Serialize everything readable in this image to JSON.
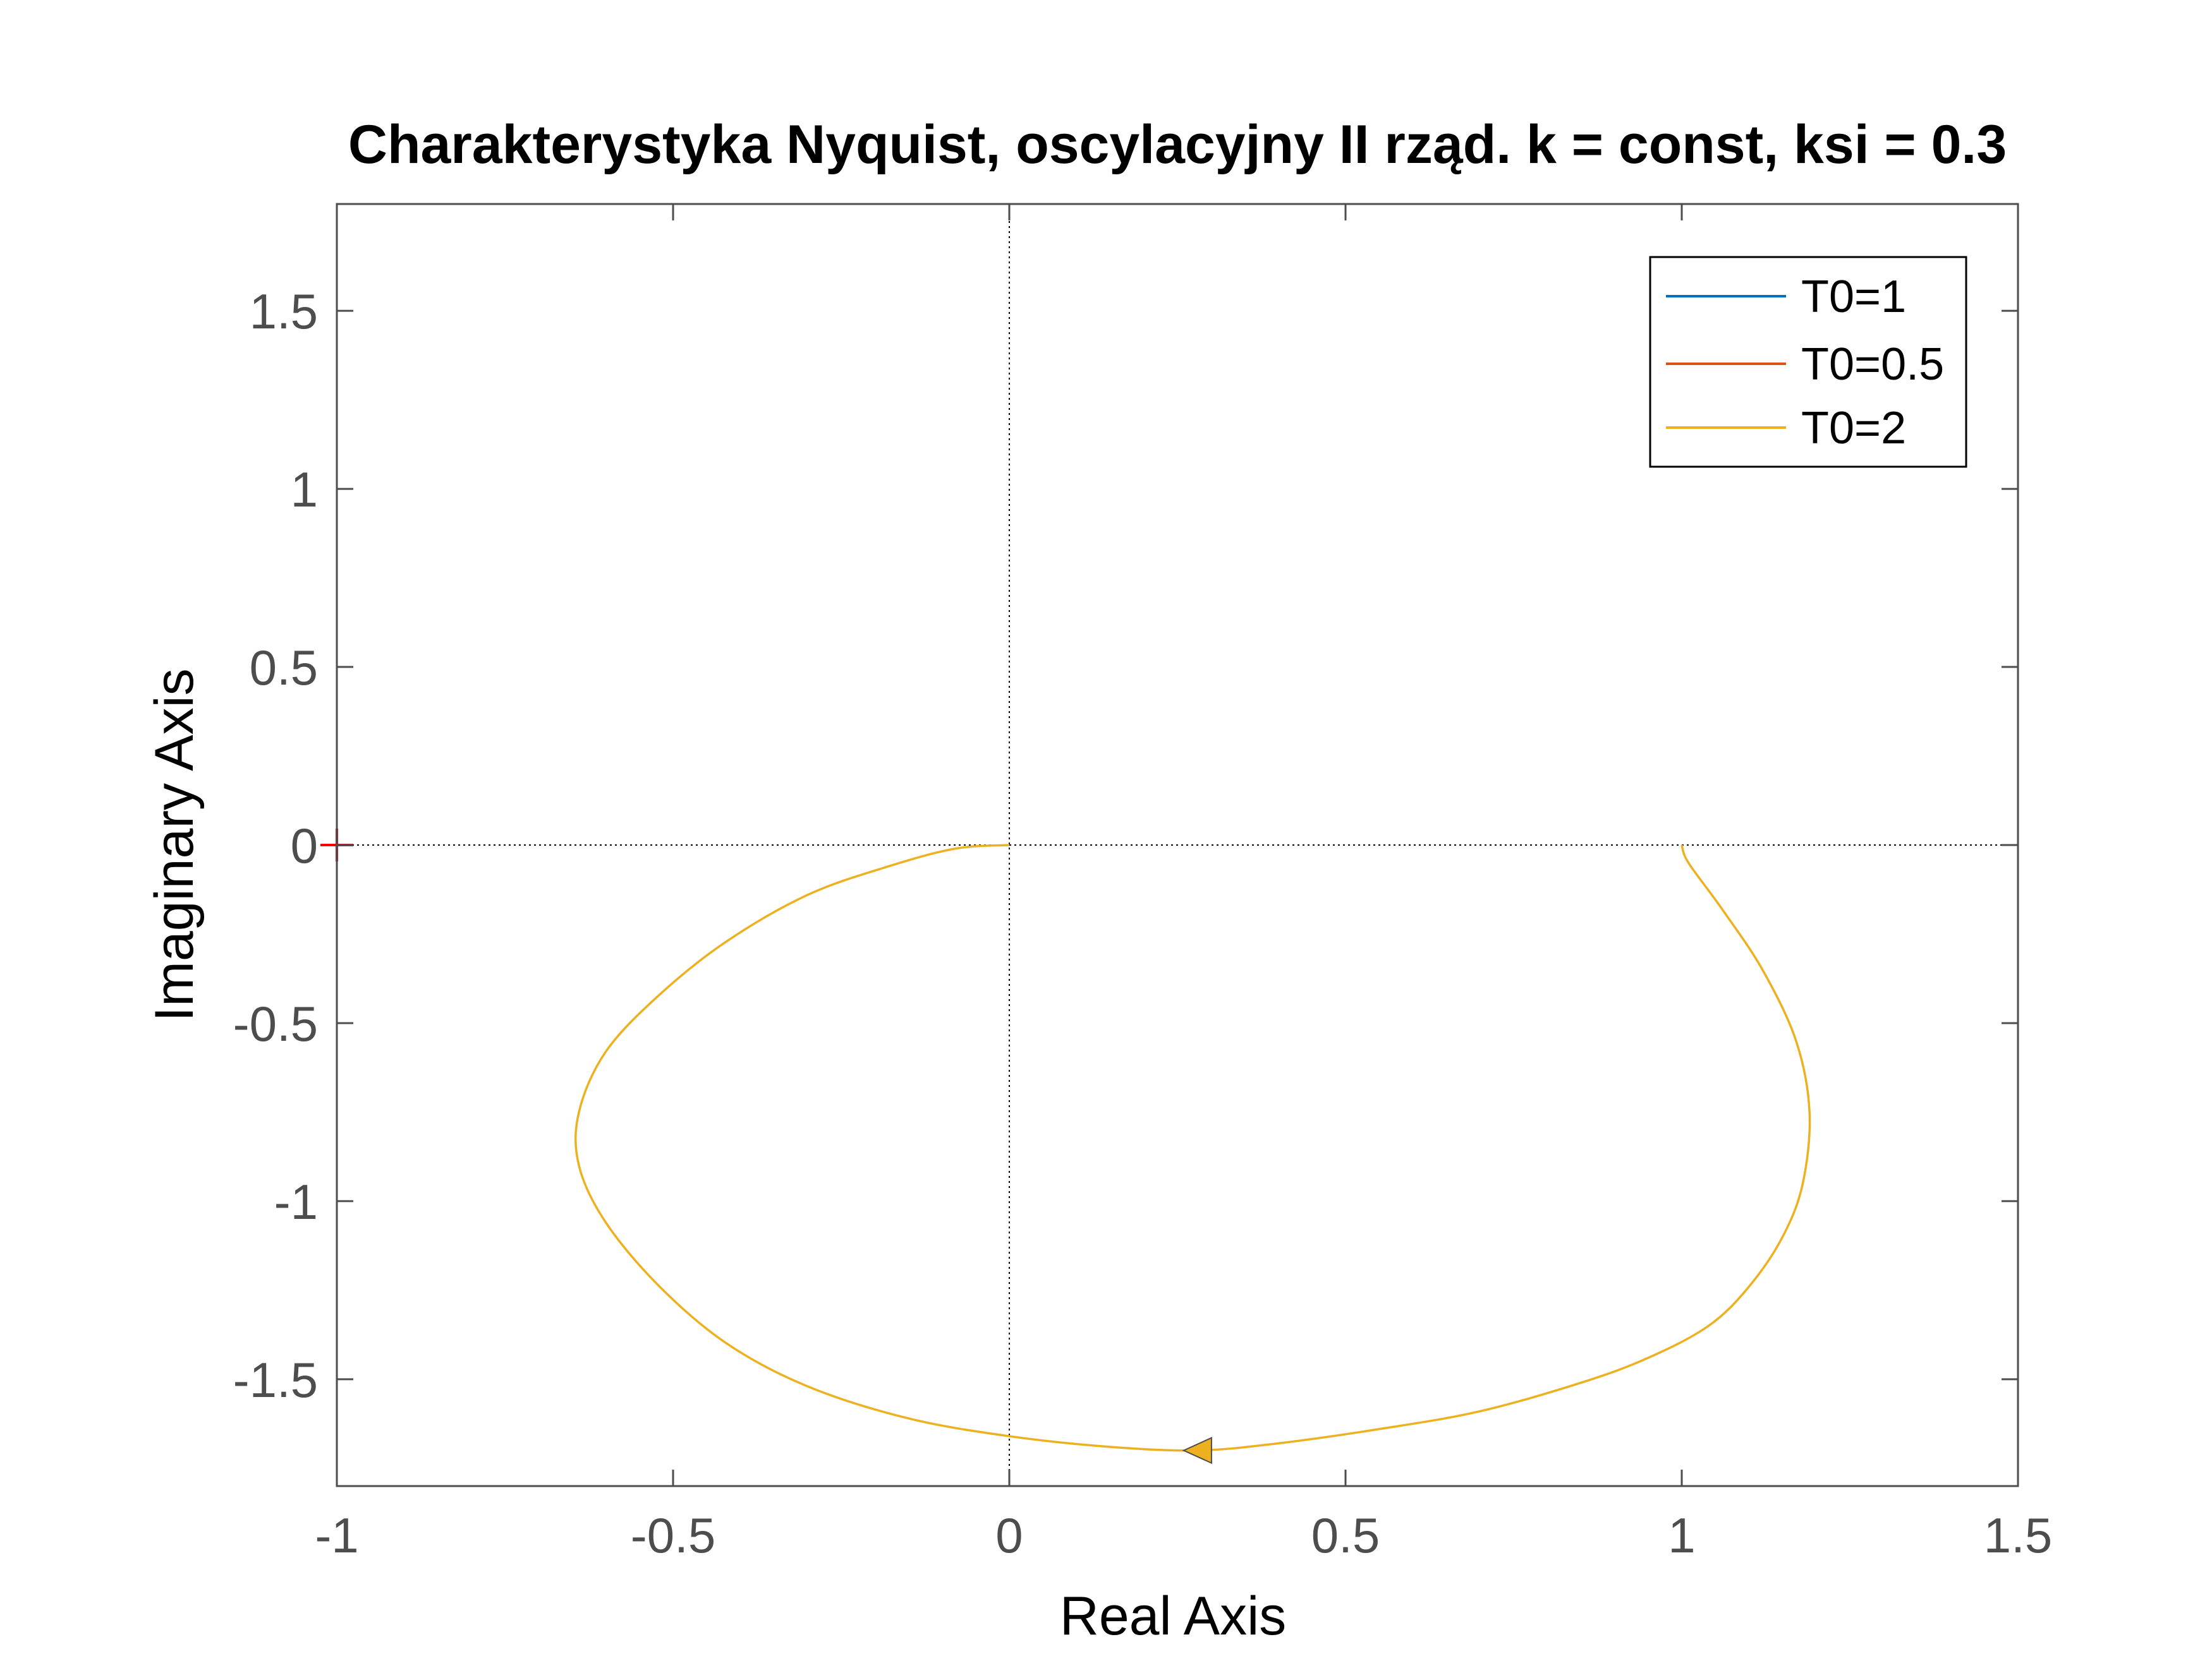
{
  "chart_data": {
    "type": "line",
    "title": "Charakterystyka Nyquist, oscylacyjny II rząd. k = const, ksi = 0.3",
    "xlabel": "Real Axis",
    "ylabel": "Imaginary Axis",
    "xlim": [
      -1,
      1.5
    ],
    "ylim": [
      -1.8,
      1.8
    ],
    "xticks": [
      -1,
      -0.5,
      0,
      0.5,
      1,
      1.5
    ],
    "xtick_labels": [
      "-1",
      "-0.5",
      "0",
      "0.5",
      "1",
      "1.5"
    ],
    "yticks": [
      -1.5,
      -1,
      -0.5,
      0,
      0.5,
      1,
      1.5
    ],
    "ytick_labels": [
      "-1.5",
      "-1",
      "-0.5",
      "0",
      "0.5",
      "1",
      "1.5"
    ],
    "grid": false,
    "legend_position": "top-right",
    "critical_point": [
      -1,
      0
    ],
    "series": [
      {
        "name": "T0=1",
        "color": "#0072BD",
        "visible_in_plot": false
      },
      {
        "name": "T0=0.5",
        "color": "#D95319",
        "visible_in_plot": false
      },
      {
        "name": "T0=2",
        "color": "#EDB120",
        "x": [
          1.0,
          1.01,
          1.06,
          1.12,
          1.17,
          1.19,
          1.18,
          1.15,
          1.1,
          1.04,
          0.95,
          0.85,
          0.7,
          0.55,
          0.4,
          0.28,
          0.15,
          0.0,
          -0.15,
          -0.3,
          -0.42,
          -0.52,
          -0.6,
          -0.64,
          -0.64,
          -0.6,
          -0.52,
          -0.42,
          -0.3,
          -0.18,
          -0.08,
          0.0
        ],
        "y": [
          0.0,
          -0.05,
          -0.18,
          -0.35,
          -0.55,
          -0.75,
          -0.95,
          -1.1,
          -1.24,
          -1.35,
          -1.44,
          -1.51,
          -1.59,
          -1.64,
          -1.68,
          -1.7,
          -1.69,
          -1.66,
          -1.61,
          -1.52,
          -1.4,
          -1.24,
          -1.06,
          -0.9,
          -0.75,
          -0.58,
          -0.42,
          -0.27,
          -0.14,
          -0.06,
          -0.01,
          0.0
        ]
      }
    ],
    "direction_arrow": {
      "series": "T0=2",
      "x": 0.28,
      "y": -1.7
    }
  }
}
